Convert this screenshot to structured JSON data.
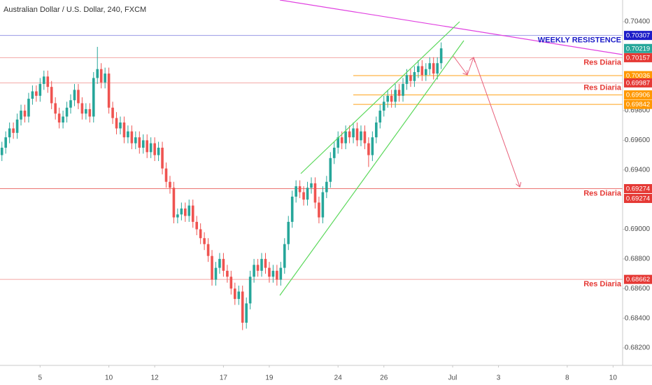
{
  "chart_data": {
    "type": "candlestick",
    "title": "Australian Dollar / U.S. Dollar, 240, FXCM",
    "up_color": "#26a69a",
    "down_color": "#ef5350",
    "open": [
      0.695,
      0.6955,
      0.6962,
      0.6968,
      0.6965,
      0.6974,
      0.698,
      0.6976,
      0.6988,
      0.6993,
      0.699,
      0.6998,
      0.7003,
      0.6996,
      0.6985,
      0.6978,
      0.6972,
      0.6976,
      0.6982,
      0.6987,
      0.6994,
      0.6985,
      0.6978,
      0.6981,
      0.6976,
      0.7002,
      0.7008,
      0.6999,
      0.7005,
      0.6982,
      0.6975,
      0.6968,
      0.6972,
      0.6962,
      0.6966,
      0.6958,
      0.6962,
      0.6955,
      0.696,
      0.6952,
      0.6958,
      0.695,
      0.6955,
      0.6941,
      0.6932,
      0.6928,
      0.6908,
      0.691,
      0.6914,
      0.6909,
      0.6916,
      0.6905,
      0.69,
      0.6894,
      0.689,
      0.6882,
      0.6866,
      0.6874,
      0.688,
      0.6872,
      0.6868,
      0.686,
      0.6853,
      0.6858,
      0.6837,
      0.685,
      0.6868,
      0.6876,
      0.6872,
      0.688,
      0.6874,
      0.6868,
      0.6872,
      0.6866,
      0.6874,
      0.689,
      0.6905,
      0.6922,
      0.6929,
      0.6925,
      0.692,
      0.6928,
      0.6931,
      0.6918,
      0.6908,
      0.6925,
      0.6932,
      0.6948,
      0.6955,
      0.6962,
      0.6958,
      0.6966,
      0.6962,
      0.6968,
      0.696,
      0.6966,
      0.6958,
      0.695,
      0.6962,
      0.6972,
      0.698,
      0.6986,
      0.699,
      0.6986,
      0.6994,
      0.699,
      0.6998,
      0.7004,
      0.7,
      0.7006,
      0.701,
      0.7004,
      0.7008,
      0.7012,
      0.7005,
      0.7012
    ],
    "high": [
      0.6959,
      0.6966,
      0.6972,
      0.6972,
      0.6978,
      0.6984,
      0.6984,
      0.6992,
      0.6997,
      0.6997,
      0.7002,
      0.7007,
      0.7007,
      0.7,
      0.6989,
      0.6982,
      0.698,
      0.6986,
      0.6991,
      0.6998,
      0.6998,
      0.6989,
      0.6985,
      0.6985,
      0.7006,
      0.7023,
      0.7012,
      0.7009,
      0.7009,
      0.6986,
      0.6979,
      0.6976,
      0.6976,
      0.697,
      0.697,
      0.6966,
      0.6966,
      0.6964,
      0.6964,
      0.6962,
      0.6962,
      0.6959,
      0.6959,
      0.6945,
      0.6936,
      0.6932,
      0.6914,
      0.6918,
      0.6918,
      0.692,
      0.692,
      0.6909,
      0.6904,
      0.6898,
      0.6894,
      0.6886,
      0.6878,
      0.6884,
      0.6884,
      0.6876,
      0.6872,
      0.6864,
      0.6862,
      0.6862,
      0.6854,
      0.6872,
      0.688,
      0.688,
      0.6884,
      0.6884,
      0.6878,
      0.6876,
      0.6876,
      0.6878,
      0.6894,
      0.6909,
      0.6926,
      0.6933,
      0.6933,
      0.6929,
      0.6932,
      0.6935,
      0.6935,
      0.6922,
      0.6929,
      0.6936,
      0.6952,
      0.6959,
      0.6966,
      0.6966,
      0.697,
      0.697,
      0.6972,
      0.6972,
      0.697,
      0.697,
      0.6962,
      0.6966,
      0.6976,
      0.6984,
      0.699,
      0.6994,
      0.6994,
      0.6998,
      0.6998,
      0.7002,
      0.7008,
      0.7008,
      0.701,
      0.7014,
      0.7014,
      0.7012,
      0.7016,
      0.7016,
      0.7016,
      0.7026
    ],
    "low": [
      0.6946,
      0.6951,
      0.6958,
      0.6961,
      0.6961,
      0.697,
      0.6972,
      0.6972,
      0.6984,
      0.6986,
      0.6986,
      0.6994,
      0.6992,
      0.6981,
      0.6974,
      0.6968,
      0.6968,
      0.6972,
      0.6978,
      0.6983,
      0.6981,
      0.6974,
      0.6974,
      0.6972,
      0.6972,
      0.6998,
      0.6995,
      0.6995,
      0.6978,
      0.6971,
      0.6964,
      0.6964,
      0.6958,
      0.6958,
      0.6954,
      0.6954,
      0.6951,
      0.6951,
      0.6948,
      0.6948,
      0.6946,
      0.6946,
      0.6937,
      0.6928,
      0.6924,
      0.6904,
      0.6904,
      0.6906,
      0.6905,
      0.6905,
      0.6901,
      0.6896,
      0.689,
      0.6886,
      0.6878,
      0.6862,
      0.6862,
      0.687,
      0.6868,
      0.6864,
      0.6856,
      0.6849,
      0.6849,
      0.6832,
      0.6833,
      0.6846,
      0.6864,
      0.6868,
      0.6868,
      0.687,
      0.6864,
      0.6864,
      0.6862,
      0.6862,
      0.687,
      0.6886,
      0.6901,
      0.6918,
      0.6921,
      0.6916,
      0.6916,
      0.6924,
      0.6914,
      0.6904,
      0.6904,
      0.6921,
      0.6928,
      0.6944,
      0.6951,
      0.6954,
      0.6954,
      0.6958,
      0.6958,
      0.6956,
      0.6956,
      0.6954,
      0.6942,
      0.6946,
      0.6958,
      0.6968,
      0.6976,
      0.6982,
      0.6982,
      0.6982,
      0.6986,
      0.6986,
      0.6994,
      0.6996,
      0.6996,
      0.7002,
      0.7,
      0.7,
      0.7004,
      0.7001,
      0.7001,
      0.7008
    ],
    "close": [
      0.6955,
      0.6962,
      0.6968,
      0.6965,
      0.6974,
      0.698,
      0.6976,
      0.6988,
      0.6993,
      0.699,
      0.6998,
      0.7003,
      0.6996,
      0.6985,
      0.6978,
      0.6972,
      0.6976,
      0.6982,
      0.6987,
      0.6994,
      0.6985,
      0.6978,
      0.6981,
      0.6976,
      0.7002,
      0.7008,
      0.6999,
      0.7005,
      0.6982,
      0.6975,
      0.6968,
      0.6972,
      0.6962,
      0.6966,
      0.6958,
      0.6962,
      0.6955,
      0.696,
      0.6952,
      0.6958,
      0.695,
      0.6955,
      0.6941,
      0.6932,
      0.6928,
      0.6908,
      0.691,
      0.6914,
      0.6909,
      0.6916,
      0.6905,
      0.69,
      0.6894,
      0.689,
      0.6882,
      0.6866,
      0.6874,
      0.688,
      0.6872,
      0.6868,
      0.686,
      0.6853,
      0.6858,
      0.6837,
      0.685,
      0.6868,
      0.6876,
      0.6872,
      0.688,
      0.6874,
      0.6868,
      0.6872,
      0.6866,
      0.6874,
      0.689,
      0.6905,
      0.6922,
      0.6929,
      0.6925,
      0.692,
      0.6928,
      0.6931,
      0.6918,
      0.6908,
      0.6925,
      0.6932,
      0.6948,
      0.6955,
      0.6962,
      0.6958,
      0.6966,
      0.6962,
      0.6968,
      0.696,
      0.6966,
      0.6958,
      0.695,
      0.6962,
      0.6972,
      0.698,
      0.6986,
      0.699,
      0.6986,
      0.6994,
      0.699,
      0.6998,
      0.7004,
      0.7,
      0.7006,
      0.701,
      0.7004,
      0.7008,
      0.7012,
      0.7005,
      0.7012,
      0.7022
    ],
    "xlim": [
      -0.5,
      162.5
    ],
    "xticks": [
      {
        "value": 10,
        "label": "5"
      },
      {
        "value": 28,
        "label": "10"
      },
      {
        "value": 40,
        "label": "12"
      },
      {
        "value": 58,
        "label": "17"
      },
      {
        "value": 70,
        "label": "19"
      },
      {
        "value": 88,
        "label": "24"
      },
      {
        "value": 100,
        "label": "26"
      },
      {
        "value": 118,
        "label": "Jul"
      },
      {
        "value": 130,
        "label": "3"
      },
      {
        "value": 148,
        "label": "8"
      },
      {
        "value": 160,
        "label": "10"
      }
    ],
    "ylim": [
      0.68082,
      0.70546
    ],
    "yticks": [
      {
        "value": 0.704,
        "label": "0.70400"
      },
      {
        "value": 0.698,
        "label": "0.69800"
      },
      {
        "value": 0.696,
        "label": "0.69600"
      },
      {
        "value": 0.694,
        "label": "0.69400"
      },
      {
        "value": 0.69,
        "label": "0.69000"
      },
      {
        "value": 0.688,
        "label": "0.68800"
      },
      {
        "value": 0.686,
        "label": "0.68600"
      },
      {
        "value": 0.684,
        "label": "0.68400"
      },
      {
        "value": 0.682,
        "label": "0.68200"
      }
    ],
    "grid": false,
    "last_price": 0.70219,
    "last_price_color": "#26a69a",
    "levels": [
      {
        "value": 0.70307,
        "color": "#1c1cc8",
        "text": "WEEKLY RESISTENCE"
      },
      {
        "value": 0.70157,
        "color": "#e53935",
        "text": "Res Diaria"
      },
      {
        "value": 0.70036,
        "color": "#ff9800"
      },
      {
        "value": 0.69987,
        "color": "#e53935",
        "text": "Res Diaria"
      },
      {
        "value": 0.69906,
        "color": "#ff9800"
      },
      {
        "value": 0.69842,
        "color": "#ff9800"
      },
      {
        "value": 0.69274,
        "color": "#e53935",
        "text": "Res Diaria"
      },
      {
        "value": 0.69274,
        "color": "#e53935"
      },
      {
        "value": 0.68662,
        "color": "#e53935",
        "text": "Res Diaria"
      }
    ]
  }
}
